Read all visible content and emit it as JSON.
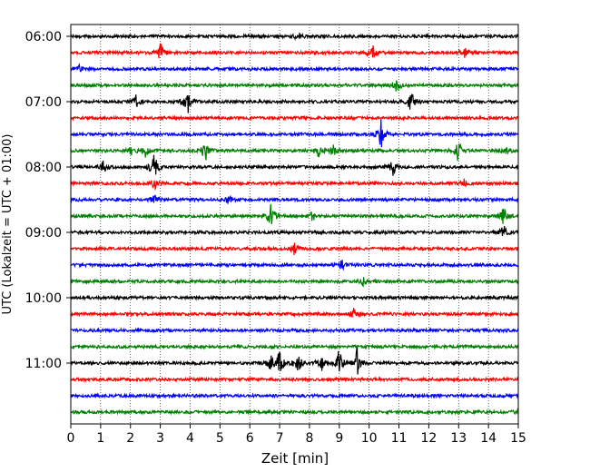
{
  "chart_data": {
    "type": "line",
    "title": "",
    "xlabel": "Zeit  [min]",
    "ylabel": "UTC (Lokalzeit = UTC + 01:00)",
    "xlim": [
      0,
      15
    ],
    "xticks": [
      "0",
      "1",
      "2",
      "3",
      "4",
      "5",
      "6",
      "7",
      "8",
      "9",
      "10",
      "11",
      "12",
      "13",
      "14",
      "15"
    ],
    "yticks": [
      "06:00",
      "07:00",
      "08:00",
      "09:00",
      "10:00",
      "11:00"
    ],
    "grid": true,
    "row_minutes": 15,
    "colors": [
      "#000000",
      "#ff0000",
      "#0000ff",
      "#008000"
    ],
    "traces": [
      {
        "start": "06:00",
        "color": "#000000",
        "events": [
          {
            "t": 7.6,
            "amp": 0.25
          }
        ]
      },
      {
        "start": "06:15",
        "color": "#ff0000",
        "events": [
          {
            "t": 3.0,
            "amp": 0.7
          },
          {
            "t": 10.1,
            "amp": 0.6
          },
          {
            "t": 13.2,
            "amp": 0.4
          }
        ]
      },
      {
        "start": "06:30",
        "color": "#0000ff",
        "events": [
          {
            "t": 0.3,
            "amp": 0.3
          }
        ]
      },
      {
        "start": "06:45",
        "color": "#008000",
        "events": [
          {
            "t": 10.9,
            "amp": 0.55
          }
        ]
      },
      {
        "start": "07:00",
        "color": "#000000",
        "events": [
          {
            "t": 2.2,
            "amp": 0.45
          },
          {
            "t": 3.9,
            "amp": 1.0
          },
          {
            "t": 11.4,
            "amp": 0.8
          }
        ]
      },
      {
        "start": "07:15",
        "color": "#ff0000",
        "events": []
      },
      {
        "start": "07:30",
        "color": "#0000ff",
        "events": [
          {
            "t": 10.4,
            "amp": 1.1
          }
        ]
      },
      {
        "start": "07:45",
        "color": "#008000",
        "events": [
          {
            "t": 2.0,
            "amp": 0.3
          },
          {
            "t": 2.5,
            "amp": 0.5
          },
          {
            "t": 4.5,
            "amp": 0.9
          },
          {
            "t": 8.3,
            "amp": 0.5
          },
          {
            "t": 8.8,
            "amp": 0.5
          },
          {
            "t": 13.0,
            "amp": 0.8
          },
          {
            "t": 14.6,
            "amp": 0.3
          }
        ]
      },
      {
        "start": "08:00",
        "color": "#000000",
        "events": [
          {
            "t": 1.1,
            "amp": 0.4
          },
          {
            "t": 2.8,
            "amp": 1.0
          },
          {
            "t": 10.8,
            "amp": 0.6
          }
        ]
      },
      {
        "start": "08:15",
        "color": "#ff0000",
        "events": [
          {
            "t": 2.8,
            "amp": 0.4
          },
          {
            "t": 13.2,
            "amp": 0.3
          }
        ]
      },
      {
        "start": "08:30",
        "color": "#0000ff",
        "events": [
          {
            "t": 2.8,
            "amp": 0.3
          },
          {
            "t": 5.3,
            "amp": 0.25
          }
        ]
      },
      {
        "start": "08:45",
        "color": "#008000",
        "events": [
          {
            "t": 6.7,
            "amp": 1.0
          },
          {
            "t": 8.1,
            "amp": 0.3
          },
          {
            "t": 14.5,
            "amp": 0.6
          }
        ]
      },
      {
        "start": "09:00",
        "color": "#000000",
        "events": [
          {
            "t": 14.5,
            "amp": 0.45
          }
        ]
      },
      {
        "start": "09:15",
        "color": "#ff0000",
        "events": [
          {
            "t": 7.5,
            "amp": 0.4
          }
        ]
      },
      {
        "start": "09:30",
        "color": "#0000ff",
        "events": [
          {
            "t": 9.1,
            "amp": 0.4
          }
        ]
      },
      {
        "start": "09:45",
        "color": "#008000",
        "events": [
          {
            "t": 9.8,
            "amp": 0.3
          }
        ]
      },
      {
        "start": "10:00",
        "color": "#000000",
        "events": []
      },
      {
        "start": "10:15",
        "color": "#ff0000",
        "events": [
          {
            "t": 9.5,
            "amp": 0.4
          }
        ]
      },
      {
        "start": "10:30",
        "color": "#0000ff",
        "events": []
      },
      {
        "start": "10:45",
        "color": "#008000",
        "events": []
      },
      {
        "start": "11:00",
        "color": "#000000",
        "events": [
          {
            "t": 6.7,
            "amp": 0.5
          },
          {
            "t": 7.0,
            "amp": 0.9
          },
          {
            "t": 7.6,
            "amp": 1.0
          },
          {
            "t": 8.4,
            "amp": 0.7
          },
          {
            "t": 9.0,
            "amp": 1.1
          },
          {
            "t": 9.6,
            "amp": 1.1
          }
        ]
      },
      {
        "start": "11:15",
        "color": "#ff0000",
        "events": []
      },
      {
        "start": "11:30",
        "color": "#0000ff",
        "events": []
      },
      {
        "start": "11:45",
        "color": "#008000",
        "events": [
          {
            "t": 15.0,
            "amp": 0.3
          }
        ]
      }
    ]
  }
}
